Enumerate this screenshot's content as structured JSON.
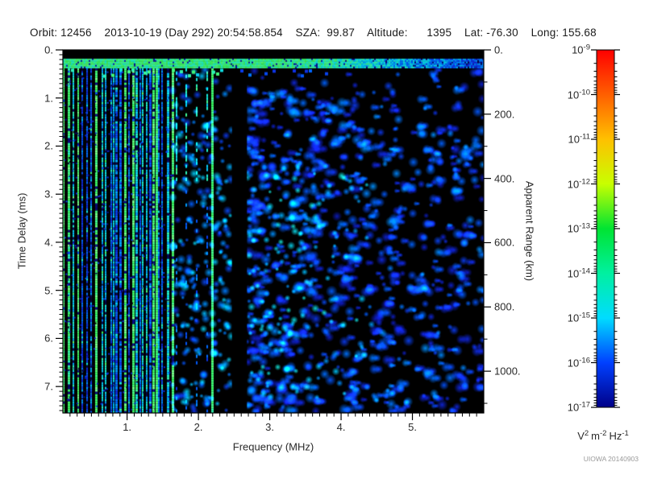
{
  "header": {
    "title": "Orbit: 12456    2013-10-19 (Day 292) 20:54:58.854    SZA:  99.87    Altitude:      1395    Lat: -76.30    Long: 155.68",
    "fields": {
      "orbit": "12456",
      "date": "2013-10-19",
      "day_of_year": "292",
      "time_utc": "20:54:58.854",
      "sza": "99.87",
      "altitude": "1395",
      "lat": "-76.30",
      "long": "155.68"
    }
  },
  "footer": {
    "watermark": "UIOWA 20140903"
  },
  "chart_data": {
    "type": "heatmap",
    "xlabel": "Frequency (MHz)",
    "ylabel_left": "Time Delay (ms)",
    "ylabel_right": "Apparent Range (km)",
    "x_range": [
      0.1,
      6.0
    ],
    "y_range_ms": [
      0,
      7.55
    ],
    "y_range_km": [
      0,
      1130
    ],
    "x_major_ticks": [
      1,
      2,
      3,
      4,
      5
    ],
    "x_major_tick_labels": [
      "1.",
      "2.",
      "3.",
      "4.",
      "5."
    ],
    "x_minor_tick_step": 0.1,
    "y_left_major_ticks": [
      0,
      1,
      2,
      3,
      4,
      5,
      6,
      7
    ],
    "y_left_major_tick_labels": [
      "0.",
      "1.",
      "2.",
      "3.",
      "4.",
      "5.",
      "6.",
      "7."
    ],
    "y_left_minor_tick_step": 0.1,
    "y_right_major_ticks": [
      0,
      200,
      400,
      600,
      800,
      1000
    ],
    "y_right_major_tick_labels": [
      "0.",
      "200.",
      "400.",
      "600.",
      "800.",
      "1000."
    ],
    "y_right_minor_tick_step": 100,
    "grid": false,
    "background_color": "#000000",
    "colorbar": {
      "scale": "log10",
      "max_label_exponent": "-9",
      "min_label_exponent": "-17",
      "exponents": [
        "-9",
        "-10",
        "-11",
        "-12",
        "-13",
        "-14",
        "-15",
        "-16",
        "-17"
      ],
      "units_parts": [
        [
          "V",
          "2"
        ],
        [
          "m",
          "-2"
        ],
        [
          "Hz",
          "-1"
        ]
      ],
      "colors_top_to_bottom": [
        "#ff0000",
        "#ff5f00",
        "#ffc000",
        "#c8ff00",
        "#00e432",
        "#00f0a0",
        "#00dcff",
        "#0040ff",
        "#000088"
      ]
    },
    "features": {
      "surface_band": {
        "delay_ms": [
          0.18,
          0.38
        ],
        "freq_mhz": [
          0.1,
          6.0
        ],
        "desc": "bright horizontal echo band across all frequencies, green-cyan at low frequency fading to blue at high frequency"
      },
      "second_band_chunks": {
        "delay_ms": [
          0.38,
          0.55
        ],
        "freq_mhz": [
          0.1,
          3.9
        ],
        "desc": "broken mottled green/blue chunks just below the main band"
      },
      "resonance_stripes": {
        "freq_mhz": [
          0.1,
          1.63
        ],
        "desc": "dense vertical plasma-resonance harmonic stripes, green/cyan/blue, full height"
      },
      "extended_stripes_mhz": [
        1.68,
        1.82,
        1.96,
        2.11
      ],
      "bright_stripes_mhz": [
        1.41,
        2.19
      ],
      "quiet_gap_mhz": [
        2.47,
        2.68
      ],
      "diffuse_field": {
        "freq_mhz": [
          2.68,
          6.0
        ],
        "desc": "diffuse dark-blue noise blobs with brighter cyan patches near the gap, density decreasing toward higher frequency"
      }
    }
  }
}
